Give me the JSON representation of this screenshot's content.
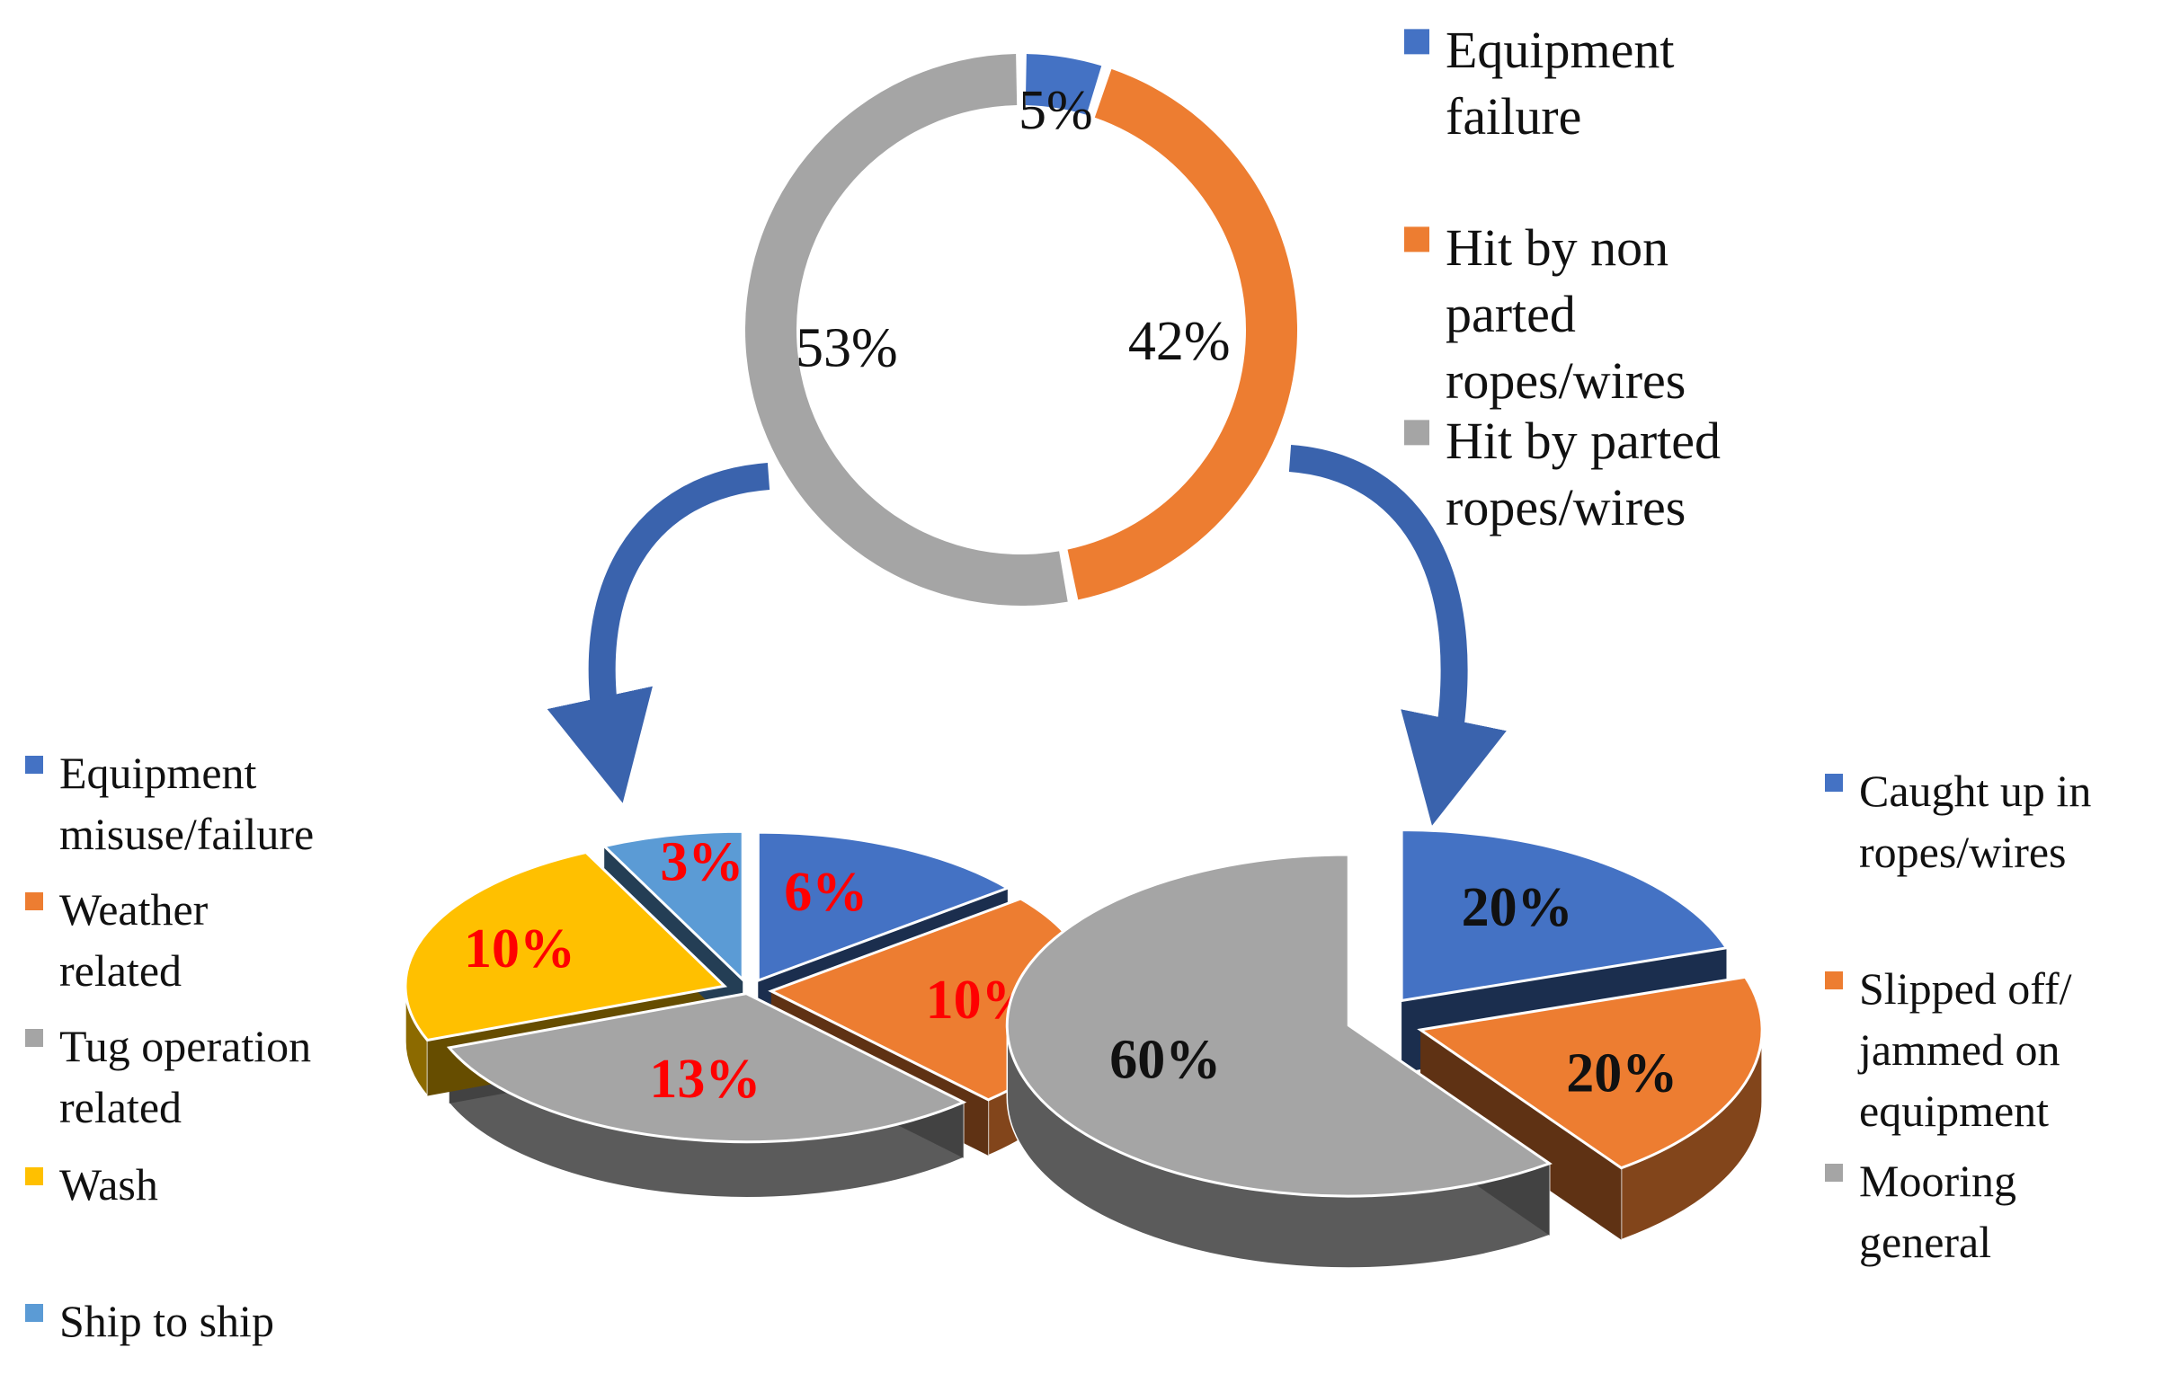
{
  "chart_data": [
    {
      "type": "pie",
      "style": "doughnut",
      "categories": [
        "Equipment failure",
        "Hit by non parted ropes/wires",
        "Hit by parted ropes/wires"
      ],
      "values": [
        5,
        42,
        53
      ],
      "labels": [
        "5%",
        "42%",
        "53%"
      ],
      "colors": [
        "#4472c4",
        "#ed7d31",
        "#a5a5a5"
      ],
      "legend": {
        "placement": "right",
        "entries": [
          [
            "Equipment",
            "failure"
          ],
          [
            "Hit by non",
            "parted",
            "ropes/wires"
          ],
          [
            "Hit by parted",
            "ropes/wires"
          ]
        ]
      }
    },
    {
      "type": "pie",
      "style": "3d-exploded",
      "categories": [
        "Equipment misuse/failure",
        "Weather related",
        "Tug operation related",
        "Wash",
        "Ship to ship"
      ],
      "values": [
        6,
        10,
        13,
        10,
        3
      ],
      "labels": [
        "6%",
        "10%",
        "13%",
        "10%",
        "3%"
      ],
      "colors": [
        "#4472c4",
        "#ed7d31",
        "#a5a5a5",
        "#ffc000",
        "#5b9bd5"
      ],
      "label_color": "#ff0000",
      "legend": {
        "placement": "left",
        "entries": [
          [
            "Equipment",
            "misuse/failure"
          ],
          [
            "Weather",
            "related"
          ],
          [
            "Tug operation",
            "related"
          ],
          [
            "Wash"
          ],
          [
            "Ship to ship"
          ]
        ]
      }
    },
    {
      "type": "pie",
      "style": "3d-exploded",
      "categories": [
        "Caught up in ropes/wires",
        "Slipped off/ jammed on equipment",
        "Mooring general"
      ],
      "values": [
        20,
        20,
        60
      ],
      "labels": [
        "20%",
        "20%",
        "60%"
      ],
      "colors": [
        "#4472c4",
        "#ed7d31",
        "#a5a5a5"
      ],
      "label_color": "#111111",
      "legend": {
        "placement": "right",
        "entries": [
          [
            "Caught up in",
            "ropes/wires"
          ],
          [
            "Slipped off/",
            "jammed on",
            "equipment"
          ],
          [
            "Mooring",
            "general"
          ]
        ]
      }
    }
  ]
}
